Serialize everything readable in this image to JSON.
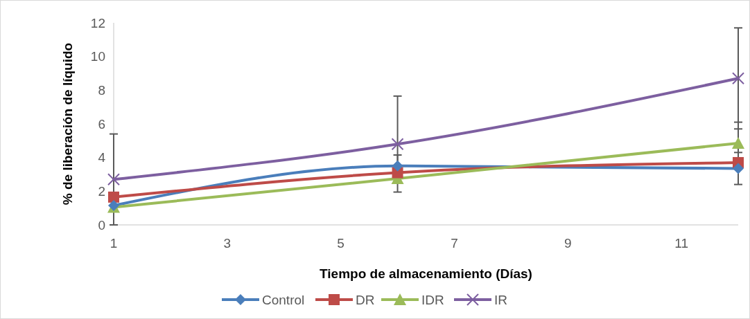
{
  "chart_data": {
    "type": "line",
    "xlabel": "Tiempo de almacenamiento (Días)",
    "ylabel": "% de liberación de líquido",
    "x": [
      1,
      6,
      12
    ],
    "xlim": [
      1,
      12
    ],
    "xticks": [
      1,
      3,
      5,
      7,
      9,
      11
    ],
    "ylim": [
      0,
      12
    ],
    "yticks": [
      0,
      2,
      4,
      6,
      8,
      10,
      12
    ],
    "grid": false,
    "legend": "bottom",
    "line_style": "solid",
    "series": [
      {
        "name": "Control",
        "color": "#4a7ebb",
        "marker": "diamond",
        "values": [
          1.15,
          3.5,
          3.35
        ],
        "errors": [
          null,
          0.65,
          0.95
        ]
      },
      {
        "name": "DR",
        "color": "#be4b48",
        "marker": "square",
        "values": [
          1.65,
          3.1,
          3.7
        ],
        "errors": [
          null,
          null,
          null
        ]
      },
      {
        "name": "IDR",
        "color": "#9bbb59",
        "marker": "triangle",
        "values": [
          1.05,
          2.75,
          4.85
        ],
        "errors": [
          null,
          null,
          1.25
        ]
      },
      {
        "name": "IR",
        "color": "#7d5fa0",
        "marker": "cross",
        "values": [
          2.7,
          4.8,
          8.7
        ],
        "errors": [
          2.7,
          2.85,
          3.0
        ]
      }
    ]
  }
}
